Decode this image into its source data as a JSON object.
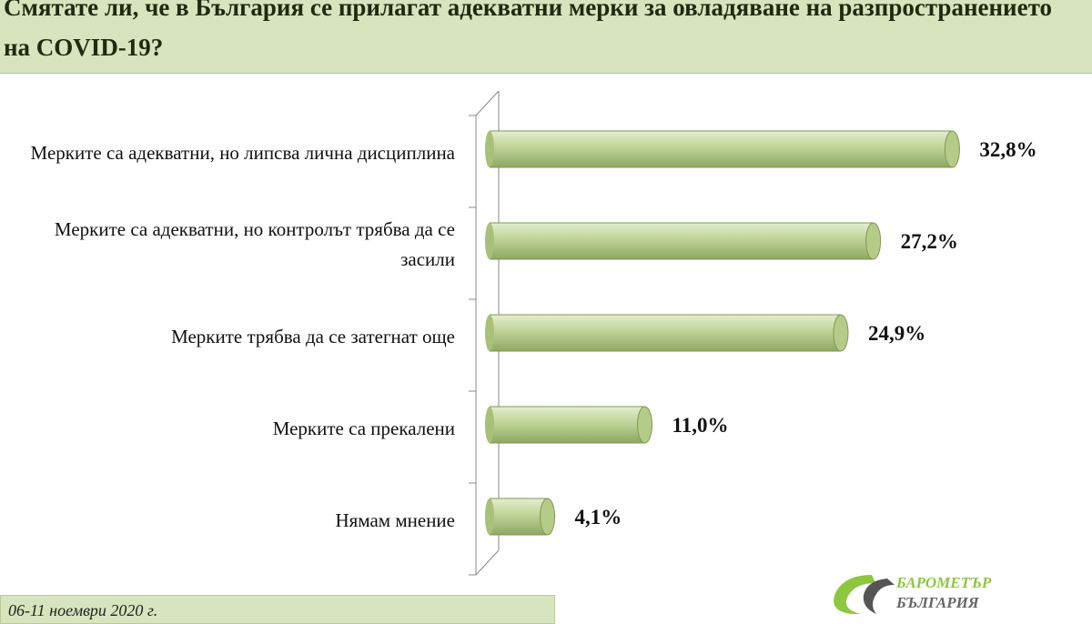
{
  "chart_data": {
    "type": "bar",
    "title": "Смятате ли, че в България се прилагат адекватни мерки за овладяване на разпространението на COVID-19?",
    "categories": [
      "Мерките са адекватни, но липсва лична дисциплина",
      "Мерките са адекватни, но контролът трябва да се засили",
      "Мерките трябва да се затегнат още",
      "Мерките са прекалени",
      "Нямам мнение"
    ],
    "values": [
      32.8,
      27.2,
      24.9,
      11.0,
      4.1
    ],
    "value_labels": [
      "32,8%",
      "27,2%",
      "24,9%",
      "11,0%",
      "4,1%"
    ],
    "color": "#c3d69b"
  },
  "note": "06-11 ноември 2020 г.",
  "logo": [
    "БАРОМЕТЪР",
    "БЪЛГАРИЯ"
  ]
}
